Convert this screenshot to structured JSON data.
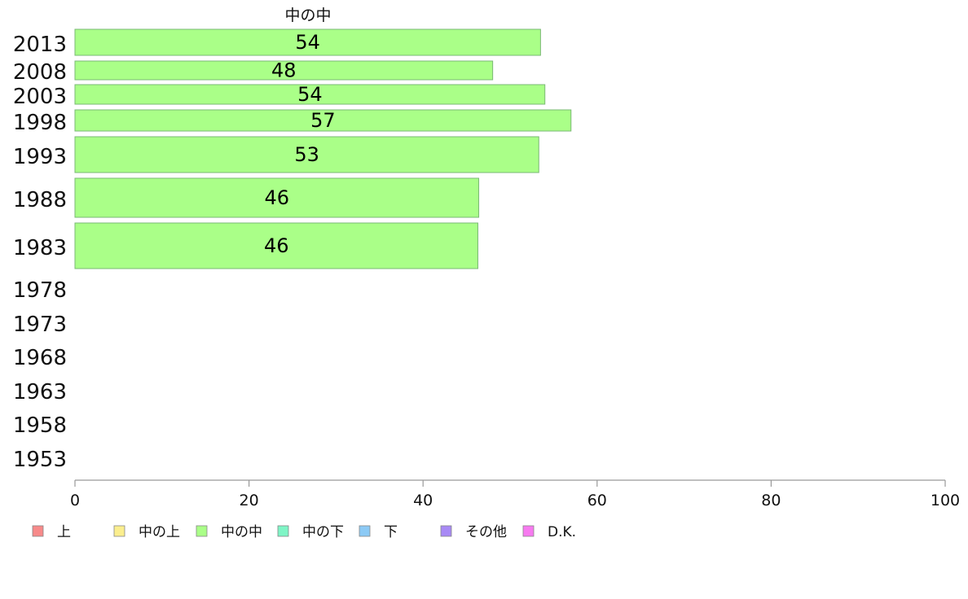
{
  "chart_data": {
    "type": "bar",
    "orientation": "horizontal",
    "title": "",
    "series_title": "中の中",
    "categories": [
      "2013",
      "2008",
      "2003",
      "1998",
      "1993",
      "1988",
      "1983",
      "1978",
      "1973",
      "1968",
      "1963",
      "1958",
      "1953"
    ],
    "series": [
      {
        "name": "中の中",
        "values": [
          53.5,
          48,
          54,
          57,
          53.3,
          46.4,
          46.3,
          null,
          null,
          null,
          null,
          null,
          null
        ],
        "labels": [
          "54",
          "48",
          "54",
          "57",
          "53",
          "46",
          "46",
          "",
          "",
          "",
          "",
          "",
          ""
        ]
      }
    ],
    "xlim": [
      0,
      100
    ],
    "xticks": [
      "0",
      "20",
      "40",
      "60",
      "80",
      "100"
    ],
    "grid": false,
    "legend_position": "bottom-left",
    "legend": [
      {
        "label": "上",
        "color": "#f78a8a"
      },
      {
        "label": "中の上",
        "color": "#fbee8e"
      },
      {
        "label": "中の中",
        "color": "#aaff88"
      },
      {
        "label": "中の下",
        "color": "#7ff5c6"
      },
      {
        "label": "下",
        "color": "#8ccaf5"
      },
      {
        "label": "その他",
        "color": "#a88af5"
      },
      {
        "label": "D.K.",
        "color": "#f77af0"
      }
    ],
    "bar_color": "#aaff88"
  }
}
